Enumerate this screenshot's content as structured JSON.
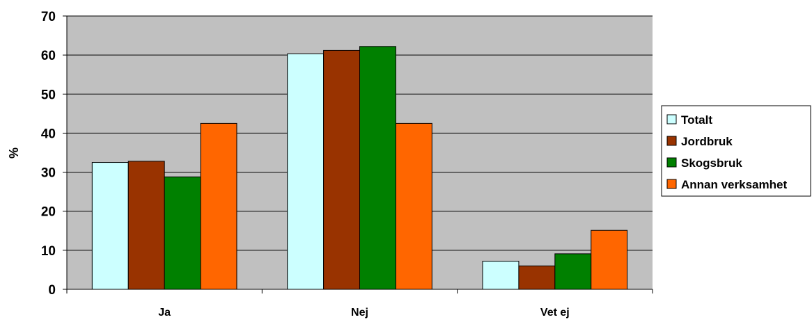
{
  "chart_data": {
    "type": "bar",
    "title": "",
    "xlabel": "",
    "ylabel": "%",
    "ylim": [
      0,
      70
    ],
    "yticks": [
      0,
      10,
      20,
      30,
      40,
      50,
      60,
      70
    ],
    "grid": true,
    "legend_position": "right",
    "plot_background": "#C0C0C0",
    "categories": [
      "Ja",
      "Nej",
      "Vet ej"
    ],
    "series": [
      {
        "name": "Totalt",
        "color": "#CCFFFF",
        "values": [
          32.5,
          60.3,
          7.2
        ]
      },
      {
        "name": "Jordbruk",
        "color": "#993300",
        "values": [
          32.8,
          61.2,
          6.0
        ]
      },
      {
        "name": "Skogsbruk",
        "color": "#008000",
        "values": [
          28.8,
          62.2,
          9.1
        ]
      },
      {
        "name": "Annan verksamhet",
        "color": "#FF6600",
        "values": [
          42.5,
          42.5,
          15.1
        ]
      }
    ]
  }
}
